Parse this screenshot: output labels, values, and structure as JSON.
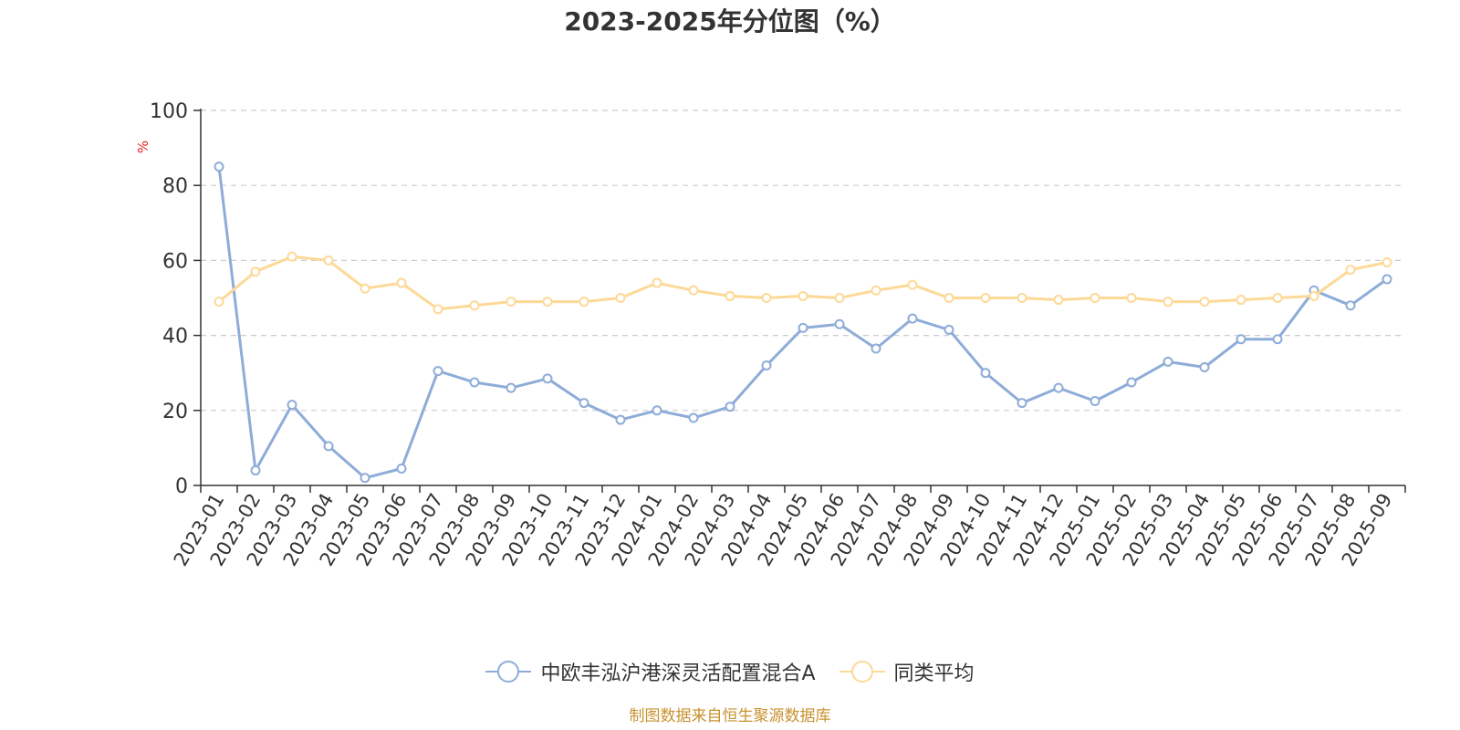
{
  "chart_data": {
    "type": "line",
    "title": "2023-2025年分位图（%）",
    "ylabel": "%",
    "xlabel": "",
    "ylim": [
      0,
      100
    ],
    "yticks": [
      0,
      20,
      40,
      60,
      80,
      100
    ],
    "grid": true,
    "legend_position": "bottom",
    "categories": [
      "2023-01",
      "2023-02",
      "2023-03",
      "2023-04",
      "2023-05",
      "2023-06",
      "2023-07",
      "2023-08",
      "2023-09",
      "2023-10",
      "2023-11",
      "2023-12",
      "2024-01",
      "2024-02",
      "2024-03",
      "2024-04",
      "2024-05",
      "2024-06",
      "2024-07",
      "2024-08",
      "2024-09",
      "2024-10",
      "2024-11",
      "2024-12",
      "2025-01",
      "2025-02",
      "2025-03",
      "2025-04",
      "2025-05",
      "2025-06",
      "2025-07",
      "2025-08",
      "2025-09"
    ],
    "series": [
      {
        "name": "中欧丰泓沪港深灵活配置混合A",
        "color": "#8eacd8",
        "values": [
          85,
          4,
          21.5,
          10.5,
          2,
          4.5,
          30.5,
          27.5,
          26,
          28.5,
          22,
          17.5,
          20,
          18,
          21,
          32,
          42,
          43,
          36.5,
          44.5,
          41.5,
          30,
          22,
          26,
          22.5,
          27.5,
          33,
          31.5,
          39,
          39,
          52,
          48,
          55
        ]
      },
      {
        "name": "同类平均",
        "color": "#fdd997",
        "values": [
          49,
          57,
          61,
          60,
          52.5,
          54,
          47,
          48,
          49,
          49,
          49,
          50,
          54,
          52,
          50.5,
          50,
          50.5,
          50,
          52,
          53.5,
          50,
          50,
          50,
          49.5,
          50,
          50,
          49,
          49,
          49.5,
          50,
          50.5,
          57.5,
          59.5
        ]
      }
    ]
  },
  "footer": {
    "source": "制图数据来自恒生聚源数据库"
  }
}
